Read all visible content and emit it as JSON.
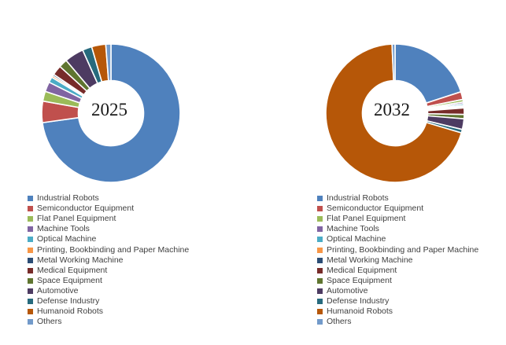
{
  "figure": {
    "background_color": "#ffffff",
    "text_color": "#3f3f3f",
    "slice_border_color": "#ffffff"
  },
  "chart_data": [
    {
      "type": "pie",
      "subtype": "donut",
      "title": "2025",
      "center_label": "2025",
      "legend_position": "bottom-left",
      "start_angle_deg": 0,
      "direction": "clockwise",
      "categories": [
        "Industrial Robots",
        "Semiconductor Equipment",
        "Flat Panel Equipment",
        "Machine Tools",
        "Optical Machine",
        "Printing, Bookbinding and Paper Machine",
        "Metal Working Machine",
        "Medical Equipment",
        "Space Equipment",
        "Automotive",
        "Defense Industry",
        "Humanoid Robots",
        "Others"
      ],
      "values_percent": [
        72.8,
        5.0,
        2.3,
        2.3,
        1.3,
        0.4,
        0.4,
        2.3,
        2.0,
        4.5,
        2.2,
        3.3,
        1.2
      ],
      "colors": [
        "#4F81BD",
        "#C0504D",
        "#9BBB59",
        "#8064A2",
        "#4BACC6",
        "#F79646",
        "#2C4D75",
        "#772C2A",
        "#5F7530",
        "#4D3B62",
        "#276A7D",
        "#B65708",
        "#729ACA"
      ]
    },
    {
      "type": "pie",
      "subtype": "donut",
      "title": "2032",
      "center_label": "2032",
      "legend_position": "bottom-left",
      "start_angle_deg": 0,
      "direction": "clockwise",
      "categories": [
        "Industrial Robots",
        "Semiconductor Equipment",
        "Flat Panel Equipment",
        "Machine Tools",
        "Optical Machine",
        "Printing, Bookbinding and Paper Machine",
        "Metal Working Machine",
        "Medical Equipment",
        "Space Equipment",
        "Automotive",
        "Defense Industry",
        "Humanoid Robots",
        "Others"
      ],
      "values_percent": [
        20.0,
        1.8,
        0.6,
        0.4,
        0.4,
        0.3,
        0.3,
        1.5,
        1.0,
        2.5,
        0.8,
        69.7,
        0.7
      ],
      "colors": [
        "#4F81BD",
        "#C0504D",
        "#9BBB59",
        "#8064A2",
        "#4BACC6",
        "#F79646",
        "#2C4D75",
        "#772C2A",
        "#5F7530",
        "#4D3B62",
        "#276A7D",
        "#B65708",
        "#729ACA"
      ]
    }
  ]
}
